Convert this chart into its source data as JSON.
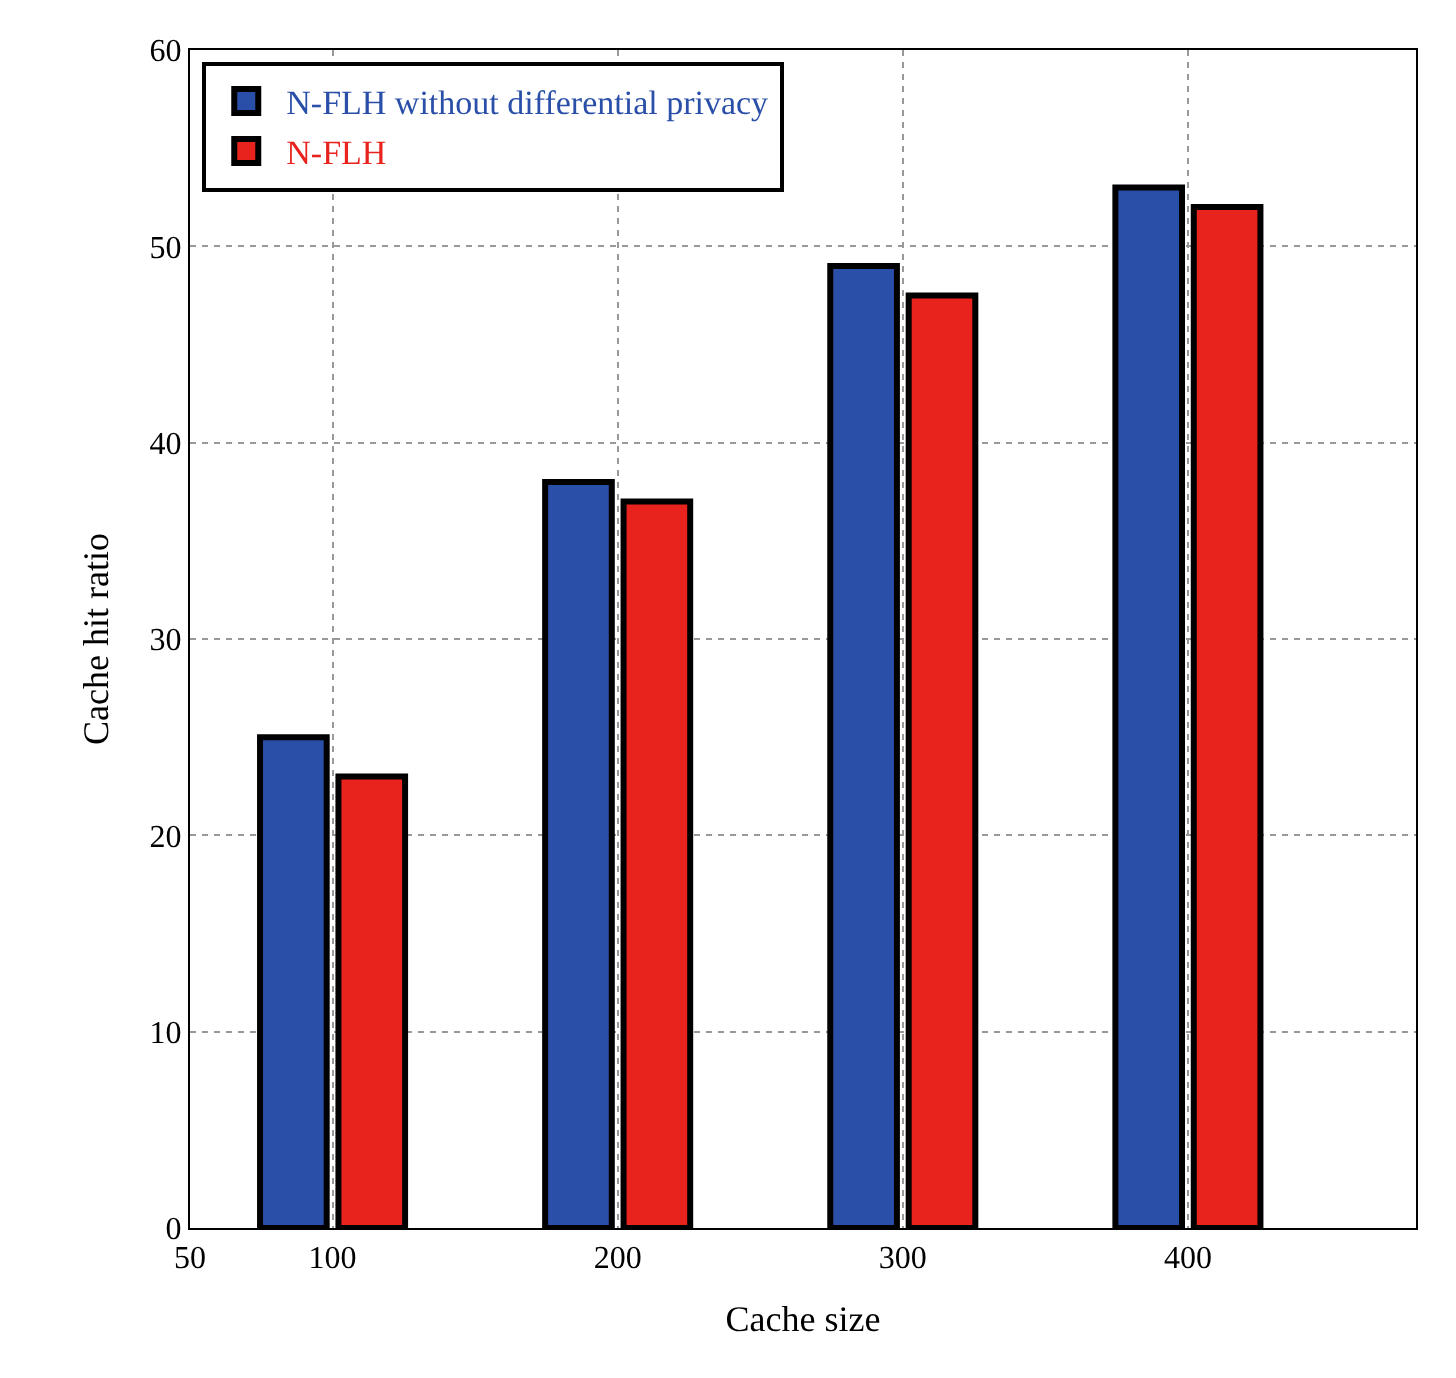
{
  "chart_data": {
    "type": "bar",
    "xlabel": "Cache size",
    "ylabel": "Cache hit ratio",
    "x": [
      100,
      200,
      300,
      400
    ],
    "series": [
      {
        "name": "N-FLH without differential privacy",
        "color": "#2a4fa8",
        "values": [
          25,
          38,
          49,
          53
        ]
      },
      {
        "name": "N-FLH",
        "color": "#e8221c",
        "values": [
          23,
          37,
          47.5,
          52
        ]
      }
    ],
    "xlim": [
      50,
      480
    ],
    "xticks": [
      50,
      100,
      200,
      300,
      400
    ],
    "ylim": [
      0,
      60
    ],
    "yticks": [
      0,
      10,
      20,
      30,
      40,
      50,
      60
    ],
    "grid": true,
    "legend": "top left"
  }
}
